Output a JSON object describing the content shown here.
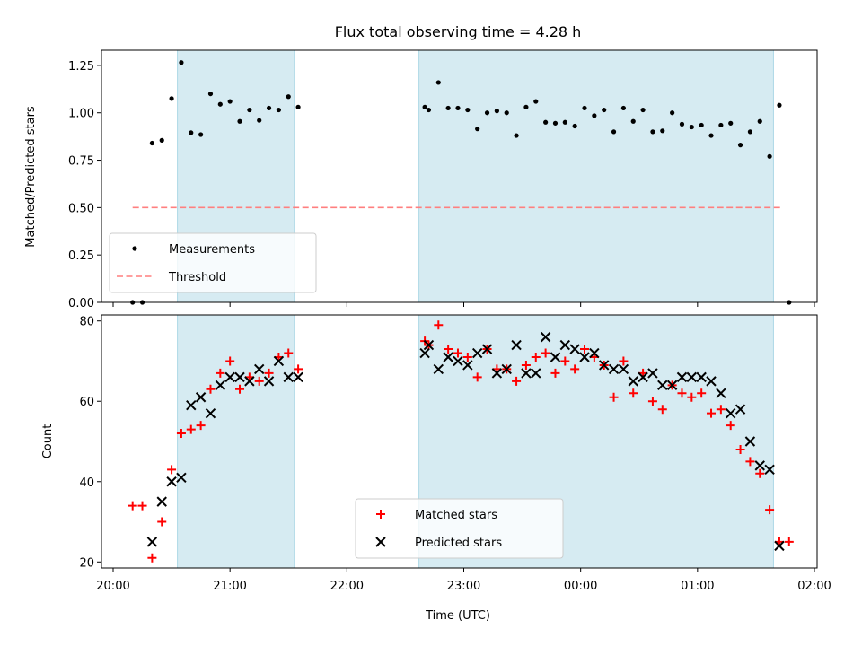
{
  "chart_data": [
    {
      "type": "scatter",
      "title": "Flux total observing time = 4.28 h",
      "xlabel": "",
      "ylabel": "Matched/Predicted stars",
      "xlim": [
        "20:00",
        "02:00"
      ],
      "ylim": [
        0,
        1.33
      ],
      "yticks": [
        "0.00",
        "0.25",
        "0.50",
        "0.75",
        "1.00",
        "1.25"
      ],
      "ytick_values": [
        0,
        0.25,
        0.5,
        0.75,
        1.0,
        1.25
      ],
      "grid": false,
      "legend": "lower-left",
      "shaded_intervals": [
        [
          "20:33",
          "21:33"
        ],
        [
          "22:37",
          "01:39"
        ]
      ],
      "threshold": {
        "name": "Threshold",
        "y": 0.5,
        "x_from": "20:10",
        "x_to": "01:43",
        "color": "#ff7f7f"
      },
      "series": [
        {
          "name": "Measurements",
          "color": "#000000",
          "marker": "dot",
          "points": [
            [
              "20:10",
              0.0
            ],
            [
              "20:15",
              0.0
            ],
            [
              "20:20",
              0.84
            ],
            [
              "20:25",
              0.855
            ],
            [
              "20:30",
              1.075
            ],
            [
              "20:35",
              1.265
            ],
            [
              "20:40",
              0.895
            ],
            [
              "20:45",
              0.885
            ],
            [
              "20:50",
              1.1
            ],
            [
              "20:55",
              1.045
            ],
            [
              "21:00",
              1.06
            ],
            [
              "21:05",
              0.955
            ],
            [
              "21:10",
              1.015
            ],
            [
              "21:15",
              0.96
            ],
            [
              "21:20",
              1.025
            ],
            [
              "21:25",
              1.015
            ],
            [
              "21:30",
              1.085
            ],
            [
              "21:35",
              1.03
            ],
            [
              "22:40",
              1.03
            ],
            [
              "22:42",
              1.015
            ],
            [
              "22:47",
              1.16
            ],
            [
              "22:52",
              1.025
            ],
            [
              "22:57",
              1.025
            ],
            [
              "23:02",
              1.015
            ],
            [
              "23:07",
              0.915
            ],
            [
              "23:12",
              1.0
            ],
            [
              "23:17",
              1.01
            ],
            [
              "23:22",
              1.0
            ],
            [
              "23:27",
              0.88
            ],
            [
              "23:32",
              1.03
            ],
            [
              "23:37",
              1.06
            ],
            [
              "23:42",
              0.95
            ],
            [
              "23:47",
              0.945
            ],
            [
              "23:52",
              0.95
            ],
            [
              "23:57",
              0.93
            ],
            [
              "00:02",
              1.025
            ],
            [
              "00:07",
              0.985
            ],
            [
              "00:12",
              1.015
            ],
            [
              "00:17",
              0.9
            ],
            [
              "00:22",
              1.025
            ],
            [
              "00:27",
              0.955
            ],
            [
              "00:32",
              1.015
            ],
            [
              "00:37",
              0.9
            ],
            [
              "00:42",
              0.905
            ],
            [
              "00:47",
              1.0
            ],
            [
              "00:52",
              0.94
            ],
            [
              "00:57",
              0.925
            ],
            [
              "01:02",
              0.935
            ],
            [
              "01:07",
              0.88
            ],
            [
              "01:12",
              0.935
            ],
            [
              "01:17",
              0.945
            ],
            [
              "01:22",
              0.83
            ],
            [
              "01:27",
              0.9
            ],
            [
              "01:32",
              0.955
            ],
            [
              "01:37",
              0.77
            ],
            [
              "01:42",
              1.04
            ],
            [
              "01:47",
              0.0
            ]
          ]
        }
      ]
    },
    {
      "type": "scatter",
      "title": "",
      "xlabel": "Time (UTC)",
      "ylabel": "Count",
      "xlim": [
        "20:00",
        "02:00"
      ],
      "ylim": [
        18.5,
        81.5
      ],
      "yticks": [
        "20",
        "40",
        "60",
        "80"
      ],
      "ytick_values": [
        20,
        40,
        60,
        80
      ],
      "xticks": [
        "20:00",
        "21:00",
        "22:00",
        "23:00",
        "00:00",
        "01:00",
        "02:00"
      ],
      "grid": false,
      "legend": "lower-center",
      "shaded_intervals": [
        [
          "20:33",
          "21:33"
        ],
        [
          "22:37",
          "01:39"
        ]
      ],
      "series": [
        {
          "name": "Matched stars",
          "color": "#ff0000",
          "marker": "plus",
          "points": [
            [
              "20:10",
              34
            ],
            [
              "20:15",
              34
            ],
            [
              "20:20",
              21
            ],
            [
              "20:25",
              30
            ],
            [
              "20:30",
              43
            ],
            [
              "20:35",
              52
            ],
            [
              "20:40",
              53
            ],
            [
              "20:45",
              54
            ],
            [
              "20:50",
              63
            ],
            [
              "20:55",
              67
            ],
            [
              "21:00",
              70
            ],
            [
              "21:05",
              63
            ],
            [
              "21:10",
              66
            ],
            [
              "21:15",
              65
            ],
            [
              "21:20",
              67
            ],
            [
              "21:25",
              71
            ],
            [
              "21:30",
              72
            ],
            [
              "21:35",
              68
            ],
            [
              "22:40",
              75
            ],
            [
              "22:42",
              74
            ],
            [
              "22:47",
              79
            ],
            [
              "22:52",
              73
            ],
            [
              "22:57",
              72
            ],
            [
              "23:02",
              71
            ],
            [
              "23:07",
              66
            ],
            [
              "23:12",
              73
            ],
            [
              "23:17",
              68
            ],
            [
              "23:22",
              68
            ],
            [
              "23:27",
              65
            ],
            [
              "23:32",
              69
            ],
            [
              "23:37",
              71
            ],
            [
              "23:42",
              72
            ],
            [
              "23:47",
              67
            ],
            [
              "23:52",
              70
            ],
            [
              "23:57",
              68
            ],
            [
              "00:02",
              73
            ],
            [
              "00:07",
              71
            ],
            [
              "00:12",
              69
            ],
            [
              "00:17",
              61
            ],
            [
              "00:22",
              70
            ],
            [
              "00:27",
              62
            ],
            [
              "00:32",
              67
            ],
            [
              "00:37",
              60
            ],
            [
              "00:42",
              58
            ],
            [
              "00:47",
              64
            ],
            [
              "00:52",
              62
            ],
            [
              "00:57",
              61
            ],
            [
              "01:02",
              62
            ],
            [
              "01:07",
              57
            ],
            [
              "01:12",
              58
            ],
            [
              "01:17",
              54
            ],
            [
              "01:22",
              48
            ],
            [
              "01:27",
              45
            ],
            [
              "01:32",
              42
            ],
            [
              "01:37",
              33
            ],
            [
              "01:42",
              25
            ],
            [
              "01:47",
              25
            ]
          ]
        },
        {
          "name": "Predicted stars",
          "color": "#000000",
          "marker": "x",
          "points": [
            [
              "20:20",
              25
            ],
            [
              "20:25",
              35
            ],
            [
              "20:30",
              40
            ],
            [
              "20:35",
              41
            ],
            [
              "20:40",
              59
            ],
            [
              "20:45",
              61
            ],
            [
              "20:50",
              57
            ],
            [
              "20:55",
              64
            ],
            [
              "21:00",
              66
            ],
            [
              "21:05",
              66
            ],
            [
              "21:10",
              65
            ],
            [
              "21:15",
              68
            ],
            [
              "21:20",
              65
            ],
            [
              "21:25",
              70
            ],
            [
              "21:30",
              66
            ],
            [
              "21:35",
              66
            ],
            [
              "22:40",
              72
            ],
            [
              "22:42",
              74
            ],
            [
              "22:47",
              68
            ],
            [
              "22:52",
              71
            ],
            [
              "22:57",
              70
            ],
            [
              "23:02",
              69
            ],
            [
              "23:07",
              72
            ],
            [
              "23:12",
              73
            ],
            [
              "23:17",
              67
            ],
            [
              "23:22",
              68
            ],
            [
              "23:27",
              74
            ],
            [
              "23:32",
              67
            ],
            [
              "23:37",
              67
            ],
            [
              "23:42",
              76
            ],
            [
              "23:47",
              71
            ],
            [
              "23:52",
              74
            ],
            [
              "23:57",
              73
            ],
            [
              "00:02",
              71
            ],
            [
              "00:07",
              72
            ],
            [
              "00:12",
              69
            ],
            [
              "00:17",
              68
            ],
            [
              "00:22",
              68
            ],
            [
              "00:27",
              65
            ],
            [
              "00:32",
              66
            ],
            [
              "00:37",
              67
            ],
            [
              "00:42",
              64
            ],
            [
              "00:47",
              64
            ],
            [
              "00:52",
              66
            ],
            [
              "00:57",
              66
            ],
            [
              "01:02",
              66
            ],
            [
              "01:07",
              65
            ],
            [
              "01:12",
              62
            ],
            [
              "01:17",
              57
            ],
            [
              "01:22",
              58
            ],
            [
              "01:27",
              50
            ],
            [
              "01:32",
              44
            ],
            [
              "01:37",
              43
            ],
            [
              "01:42",
              24
            ]
          ]
        }
      ]
    }
  ]
}
